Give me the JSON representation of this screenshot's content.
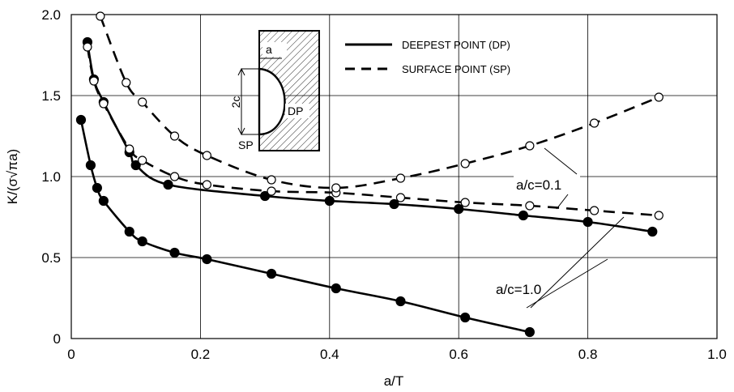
{
  "chart_data": {
    "type": "line",
    "xlabel": "a/T",
    "ylabel": "K/(σ√πa)",
    "xlim": [
      0,
      1.0
    ],
    "ylim": [
      0,
      2.0
    ],
    "x_ticks": [
      "0",
      "0.2",
      "0.4",
      "0.6",
      "0.8",
      "1.0"
    ],
    "y_ticks": [
      "0",
      "0.5",
      "1.0",
      "1.5",
      "2.0"
    ],
    "grid": true,
    "legend_position": "top-right",
    "legend": [
      {
        "label": "DEEPEST POINT (DP)",
        "style": "solid"
      },
      {
        "label": "SURFACE POINT (SP)",
        "style": "dashed"
      }
    ],
    "series": [
      {
        "ratio": "a/c=0.1",
        "point": "DP",
        "line_style": "solid",
        "marker": "filled",
        "x": [
          0.025,
          0.035,
          0.05,
          0.09,
          0.1,
          0.15,
          0.3,
          0.4,
          0.5,
          0.6,
          0.7,
          0.8,
          0.9
        ],
        "y": [
          1.83,
          1.6,
          1.46,
          1.15,
          1.07,
          0.95,
          0.88,
          0.85,
          0.83,
          0.8,
          0.76,
          0.72,
          0.66
        ]
      },
      {
        "ratio": "a/c=1.0",
        "point": "DP",
        "line_style": "solid",
        "marker": "filled",
        "x": [
          0.015,
          0.03,
          0.04,
          0.05,
          0.09,
          0.11,
          0.16,
          0.21,
          0.31,
          0.41,
          0.51,
          0.61,
          0.71
        ],
        "y": [
          1.35,
          1.07,
          0.93,
          0.85,
          0.66,
          0.6,
          0.53,
          0.49,
          0.4,
          0.31,
          0.23,
          0.13,
          0.04
        ]
      },
      {
        "ratio": "a/c=0.1",
        "point": "SP",
        "line_style": "dashed",
        "marker": "open",
        "x": [
          0.025,
          0.035,
          0.05,
          0.09,
          0.11,
          0.16,
          0.21,
          0.31,
          0.41,
          0.51,
          0.61,
          0.71,
          0.81,
          0.91
        ],
        "y": [
          1.8,
          1.59,
          1.45,
          1.17,
          1.1,
          1.0,
          0.95,
          0.91,
          0.9,
          0.87,
          0.84,
          0.82,
          0.79,
          0.76
        ]
      },
      {
        "ratio": "a/c=1.0",
        "point": "SP",
        "line_style": "dashed",
        "marker": "open",
        "x": [
          0.045,
          0.085,
          0.11,
          0.16,
          0.21,
          0.31,
          0.41,
          0.51,
          0.61,
          0.71,
          0.81,
          0.91
        ],
        "y": [
          1.99,
          1.58,
          1.46,
          1.25,
          1.13,
          0.98,
          0.93,
          0.99,
          1.08,
          1.19,
          1.33,
          1.49
        ]
      }
    ],
    "annotations": [
      {
        "text": "a/c=0.1",
        "points_to": [
          "a/c=0.1 DP",
          "a/c=0.1 SP"
        ]
      },
      {
        "text": "a/c=1.0",
        "points_to": [
          "a/c=1.0 DP",
          "a/c=1.0 SP"
        ]
      }
    ],
    "inset": {
      "labels": {
        "a": "a",
        "two_c": "2c",
        "dp": "DP",
        "sp": "SP"
      }
    }
  }
}
